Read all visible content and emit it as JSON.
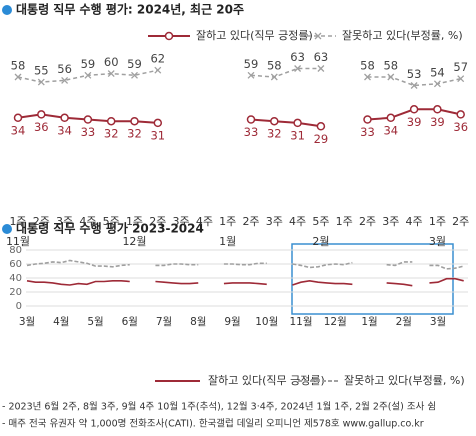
{
  "chart_data": [
    {
      "type": "line",
      "title": "대통령 직무 수행 평가: 2024년, 최근 20주",
      "categories": [
        "1주",
        "2주",
        "3주",
        "4주",
        "5주",
        "1주",
        "2주",
        "3주",
        "4주",
        "1주",
        "2주",
        "3주",
        "4주",
        "5주",
        "1주",
        "2주",
        "3주",
        "4주",
        "1주",
        "2주"
      ],
      "months": [
        "11월",
        null,
        null,
        null,
        null,
        "12월",
        null,
        null,
        null,
        "1월",
        null,
        null,
        null,
        "2월",
        null,
        null,
        null,
        null,
        "3월",
        null
      ],
      "series": [
        {
          "name": "잘하고 있다(직무 긍정률)",
          "color": "#9e2a37",
          "values": [
            34,
            36,
            34,
            33,
            32,
            32,
            31,
            null,
            null,
            null,
            33,
            32,
            31,
            29,
            null,
            33,
            34,
            39,
            39,
            36
          ]
        },
        {
          "name": "잘못하고 있다(부정률, %)",
          "color": "#a0a0a0",
          "values": [
            58,
            55,
            56,
            59,
            60,
            59,
            62,
            null,
            null,
            null,
            59,
            58,
            63,
            63,
            null,
            58,
            58,
            53,
            54,
            57
          ]
        }
      ]
    },
    {
      "type": "line",
      "title": "대통령 직무 수행 평가 2023-2024",
      "categories": [
        "3월",
        null,
        null,
        null,
        "4월",
        null,
        null,
        null,
        "5월",
        null,
        null,
        null,
        "6월",
        null,
        null,
        null,
        "7월",
        null,
        null,
        null,
        "8월",
        null,
        null,
        null,
        "9월",
        null,
        null,
        null,
        "10월",
        null,
        null,
        null,
        "11월",
        null,
        null,
        null,
        "12월",
        null,
        null,
        null,
        "1월",
        null,
        null,
        null,
        "2월",
        null,
        null,
        null,
        "3월",
        null,
        null,
        null
      ],
      "ylim": [
        0,
        90
      ],
      "yticks": [
        0,
        20,
        40,
        60,
        80
      ],
      "grid": true,
      "series": [
        {
          "name": "잘하고 있다(직무 긍정률)",
          "color": "#9e2a37",
          "values": [
            36,
            34,
            34,
            33,
            31,
            30,
            32,
            31,
            35,
            35,
            36,
            36,
            35,
            null,
            null,
            35,
            34,
            33,
            32,
            32,
            33,
            null,
            null,
            32,
            33,
            33,
            33,
            32,
            31,
            null,
            null,
            30,
            34,
            36,
            34,
            33,
            32,
            32,
            31,
            null,
            null,
            null,
            33,
            32,
            31,
            29,
            null,
            33,
            34,
            39,
            39,
            36
          ]
        },
        {
          "name": "잘못하고 있다(부정률, %)",
          "color": "#a0a0a0",
          "values": [
            58,
            60,
            61,
            63,
            62,
            65,
            63,
            61,
            57,
            57,
            56,
            58,
            59,
            null,
            null,
            58,
            58,
            60,
            60,
            59,
            59,
            null,
            null,
            60,
            60,
            59,
            59,
            61,
            61,
            null,
            null,
            60,
            58,
            55,
            56,
            59,
            60,
            59,
            62,
            null,
            null,
            null,
            59,
            58,
            63,
            63,
            null,
            58,
            58,
            53,
            54,
            57
          ]
        }
      ]
    }
  ],
  "footnotes": [
    "- 2023년 6월 2주, 8월 3주, 9월 4주 10월 1주(추석), 12월 3·4주, 2024년 1월 1주, 2월 2주(설) 조사 쉼",
    "- 매주 전국 유권자 약 1,000명 전화조사(CATI). 한국갤럽 데일리 오피니언 제578호 www.gallup.co.kr"
  ]
}
